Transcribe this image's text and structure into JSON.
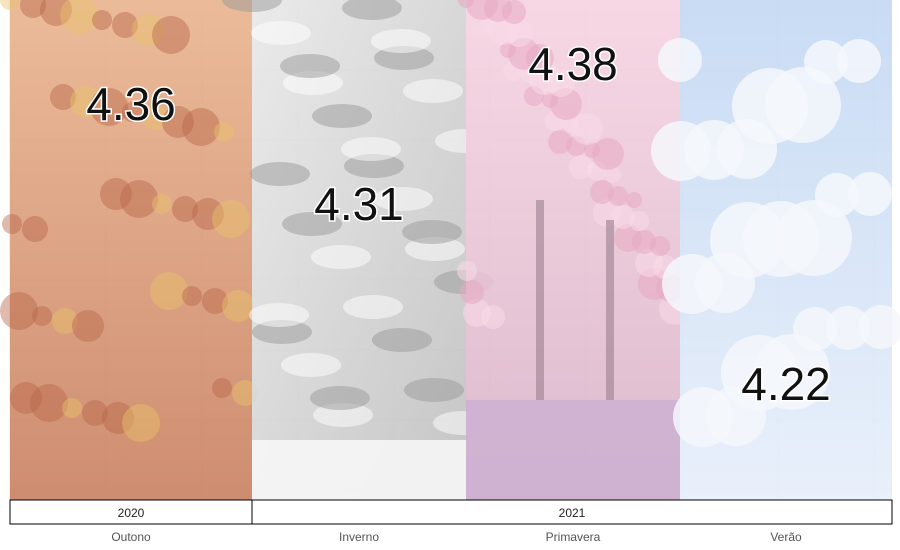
{
  "chart_data": {
    "type": "bar",
    "categories": [
      "Outono",
      "Inverno",
      "Primavera",
      "Verão"
    ],
    "values": [
      4.36,
      4.31,
      4.38,
      4.22
    ],
    "value_labels": [
      "4.36",
      "4.31",
      "4.38",
      "4.22"
    ],
    "year_groups": [
      {
        "label": "2020",
        "categories": [
          "Outono"
        ]
      },
      {
        "label": "2021",
        "categories": [
          "Inverno",
          "Primavera",
          "Verão"
        ]
      }
    ],
    "ylim": [
      4.15,
      4.4
    ],
    "grid": true,
    "bar_image_themes": [
      "autumn-maple-leaves",
      "winter-snowy-branches",
      "spring-cherry-blossoms",
      "summer-cloudy-sky"
    ],
    "colors": {
      "autumn": "#d9a07a",
      "autumn_dark": "#b8664a",
      "winter": "#d6d6d6",
      "winter_dark": "#9a9a9a",
      "spring": "#f2c9d8",
      "spring_dark": "#c7a0b8",
      "summer": "#cfe0f5",
      "summer_cloud": "#f4f7fc",
      "grid": "#e6e6e6"
    }
  }
}
